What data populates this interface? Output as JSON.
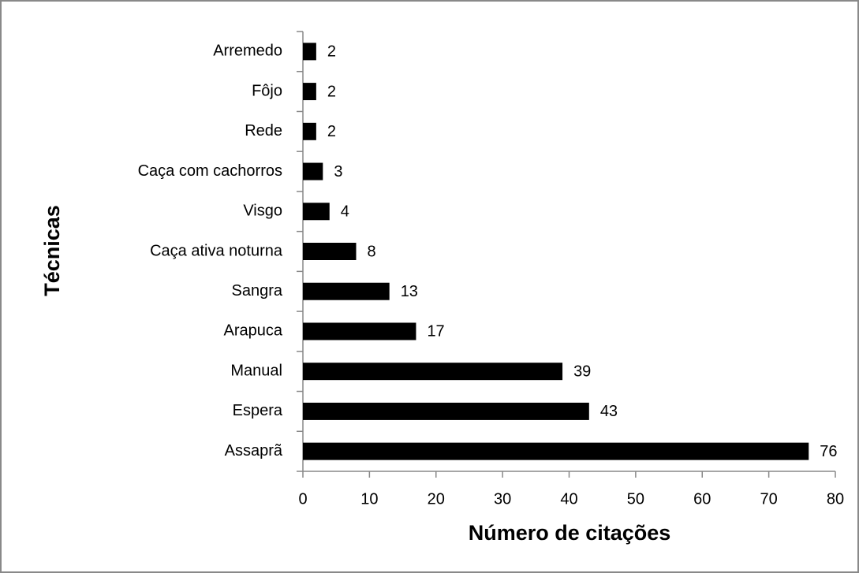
{
  "chart_data": {
    "type": "barh",
    "x_label": "Número de citações",
    "y_label": "Técnicas",
    "categories": [
      "Arremedo",
      "Fôjo",
      "Rede",
      "Caça com cachorros",
      "Visgo",
      "Caça ativa noturna",
      "Sangra",
      "Arapuca",
      "Manual",
      "Espera",
      "Assaprã"
    ],
    "values": [
      2,
      2,
      2,
      3,
      4,
      8,
      13,
      17,
      39,
      43,
      76
    ],
    "color": "#000000",
    "xlim": [
      0,
      80
    ],
    "xticks": [
      0,
      10,
      20,
      30,
      40,
      50,
      60,
      70,
      80
    ]
  }
}
